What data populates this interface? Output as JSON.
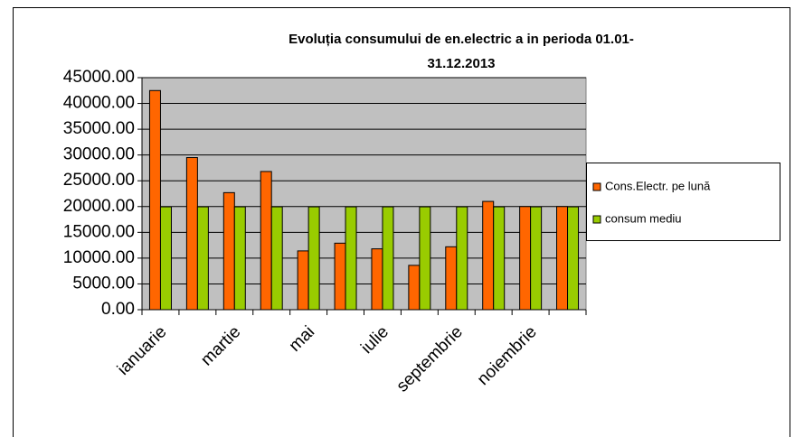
{
  "chart_data": {
    "type": "bar",
    "title": [
      "Evoluția consumului  de en.electric a in perioda 01.01-",
      "31.12.2013"
    ],
    "categories": [
      "ianuarie",
      null,
      "martie",
      null,
      "mai",
      null,
      "iulie",
      null,
      "septembrie",
      null,
      "noiembrie",
      null
    ],
    "series": [
      {
        "name": "Cons.Electr. pe lună",
        "color": "#ff6600",
        "values": [
          42500,
          29500,
          22700,
          26800,
          11400,
          12900,
          11800,
          8600,
          12200,
          21000,
          20000,
          20000
        ]
      },
      {
        "name": "consum mediu",
        "color": "#99cc00",
        "values": [
          19950,
          19950,
          19950,
          19950,
          19950,
          19950,
          19950,
          19950,
          19950,
          19950,
          19950,
          19950
        ]
      }
    ],
    "ylim": [
      0,
      45000
    ],
    "yticks": [
      {
        "value": 0,
        "label": "0.00"
      },
      {
        "value": 5000,
        "label": "5000.00"
      },
      {
        "value": 10000,
        "label": "10000.00"
      },
      {
        "value": 15000,
        "label": "15000.00"
      },
      {
        "value": 20000,
        "label": "20000.00"
      },
      {
        "value": 25000,
        "label": "25000.00"
      },
      {
        "value": 30000,
        "label": "30000.00"
      },
      {
        "value": 35000,
        "label": "35000.00"
      },
      {
        "value": 40000,
        "label": "40000.00"
      },
      {
        "value": 45000,
        "label": "45000.00"
      }
    ],
    "grid": true,
    "legend": "right"
  }
}
